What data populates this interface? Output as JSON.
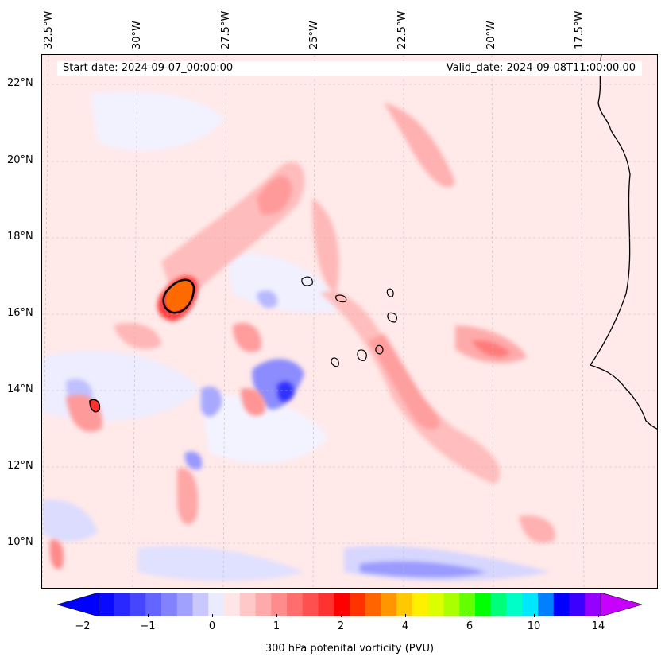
{
  "header": {
    "start_date": "Start date: 2024-09-07_00:00:00",
    "valid_date": "Valid_date: 2024-09-08T11:00:00.00"
  },
  "lon_labels": [
    "32.5°W",
    "30°W",
    "27.5°W",
    "25°W",
    "22.5°W",
    "20°W",
    "17.5°W"
  ],
  "lat_labels": [
    "22°N",
    "20°N",
    "18°N",
    "16°N",
    "14°N",
    "12°N",
    "10°N"
  ],
  "colorbar": {
    "label": "300 hPa potenital vorticity (PVU)",
    "ticks": [
      "−2",
      "−1",
      "0",
      "1",
      "2",
      "4",
      "6",
      "10",
      "14"
    ],
    "colors": [
      "#0a0aff",
      "#2828ff",
      "#4646ff",
      "#6464ff",
      "#8282ff",
      "#a0a0ff",
      "#c8c8ff",
      "#ebebff",
      "#ffe6e6",
      "#ffc8c8",
      "#ffaaaa",
      "#ff8c8c",
      "#ff6e6e",
      "#ff5050",
      "#ff3232",
      "#ff0000",
      "#ff3200",
      "#ff6400",
      "#ff9600",
      "#ffc800",
      "#fff000",
      "#dcff00",
      "#aaff00",
      "#64ff00",
      "#00ff00",
      "#00ff78",
      "#00ffc8",
      "#00e6ff",
      "#0080ff",
      "#0000ff",
      "#3c00ff",
      "#9600ff"
    ],
    "extend_low": "#0000ff",
    "extend_high": "#c800ff"
  },
  "map": {
    "region": "Eastern tropical Atlantic, Cape Verde and West African coast",
    "highlight_color": "#ff6a00",
    "contour_color": "#000000"
  }
}
